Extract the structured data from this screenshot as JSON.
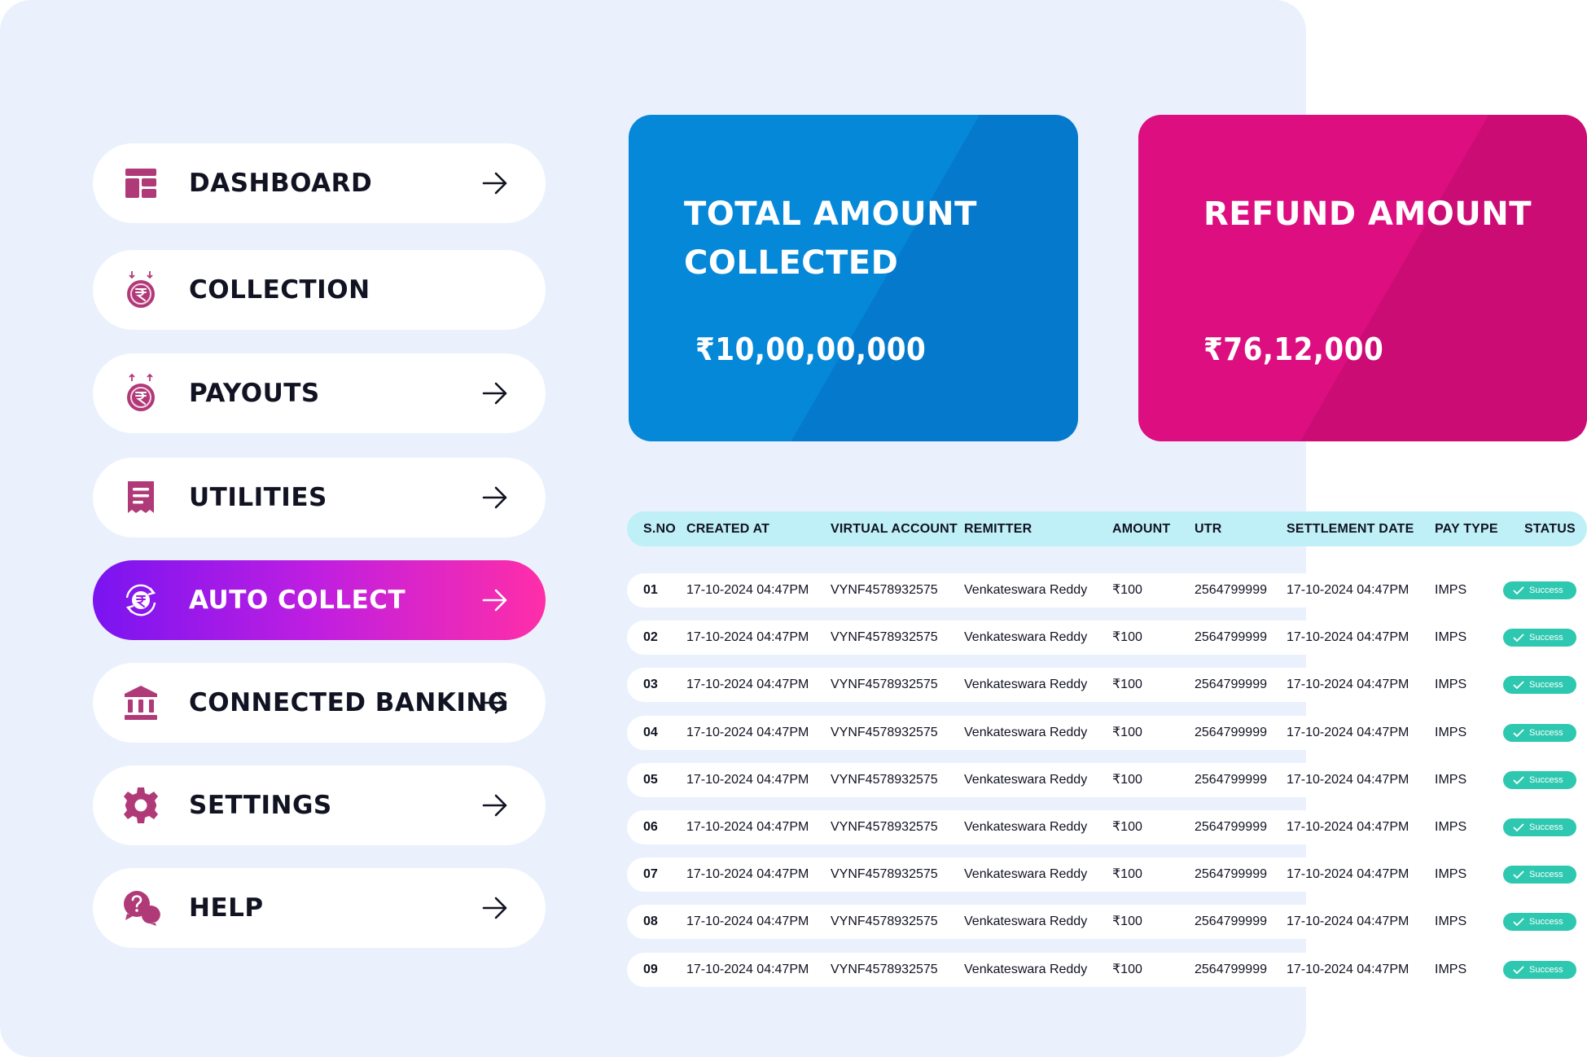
{
  "sidebar": {
    "items": [
      {
        "label": "DASHBOARD",
        "icon": "dashboard-icon",
        "active": false,
        "arrow": true
      },
      {
        "label": "COLLECTION",
        "icon": "rupee-collection-icon",
        "active": false,
        "arrow": false
      },
      {
        "label": "PAYOUTS",
        "icon": "rupee-payout-icon",
        "active": false,
        "arrow": true
      },
      {
        "label": "UTILITIES",
        "icon": "receipt-icon",
        "active": false,
        "arrow": true
      },
      {
        "label": "AUTO COLLECT",
        "icon": "rupee-refresh-icon",
        "active": true,
        "arrow": true
      },
      {
        "label": "CONNECTED BANKING",
        "icon": "bank-icon",
        "active": false,
        "arrow": true
      },
      {
        "label": "SETTINGS",
        "icon": "gear-icon",
        "active": false,
        "arrow": true
      },
      {
        "label": "HELP",
        "icon": "help-chat-icon",
        "active": false,
        "arrow": true
      }
    ]
  },
  "cards": {
    "total": {
      "title": "TOTAL AMOUNT COLLECTED",
      "value": "₹10,00,00,000",
      "color": "#0688d8"
    },
    "refund": {
      "title": "REFUND AMOUNT",
      "value": "₹76,12,000",
      "color": "#dc0e80"
    }
  },
  "table": {
    "headers": {
      "sno": "S.NO",
      "created": "CREATED AT",
      "virtual": "VIRTUAL ACCOUNT",
      "remitter": "REMITTER",
      "amount": "AMOUNT",
      "utr": "UTR",
      "settle": "SETTLEMENT DATE",
      "paytype": "PAY TYPE",
      "status": "STATUS"
    },
    "rows": [
      {
        "sno": "01",
        "created": "17-10-2024 04:47PM",
        "virtual": "VYNF4578932575",
        "remitter": "Venkateswara Reddy",
        "amount": "₹100",
        "utr": "2564799999",
        "settle": "17-10-2024 04:47PM",
        "paytype": "IMPS",
        "status": "Success"
      },
      {
        "sno": "02",
        "created": "17-10-2024 04:47PM",
        "virtual": "VYNF4578932575",
        "remitter": "Venkateswara Reddy",
        "amount": "₹100",
        "utr": "2564799999",
        "settle": "17-10-2024 04:47PM",
        "paytype": "IMPS",
        "status": "Success"
      },
      {
        "sno": "03",
        "created": "17-10-2024 04:47PM",
        "virtual": "VYNF4578932575",
        "remitter": "Venkateswara Reddy",
        "amount": "₹100",
        "utr": "2564799999",
        "settle": "17-10-2024 04:47PM",
        "paytype": "IMPS",
        "status": "Success"
      },
      {
        "sno": "04",
        "created": "17-10-2024 04:47PM",
        "virtual": "VYNF4578932575",
        "remitter": "Venkateswara Reddy",
        "amount": "₹100",
        "utr": "2564799999",
        "settle": "17-10-2024 04:47PM",
        "paytype": "IMPS",
        "status": "Success"
      },
      {
        "sno": "05",
        "created": "17-10-2024 04:47PM",
        "virtual": "VYNF4578932575",
        "remitter": "Venkateswara Reddy",
        "amount": "₹100",
        "utr": "2564799999",
        "settle": "17-10-2024 04:47PM",
        "paytype": "IMPS",
        "status": "Success"
      },
      {
        "sno": "06",
        "created": "17-10-2024 04:47PM",
        "virtual": "VYNF4578932575",
        "remitter": "Venkateswara Reddy",
        "amount": "₹100",
        "utr": "2564799999",
        "settle": "17-10-2024 04:47PM",
        "paytype": "IMPS",
        "status": "Success"
      },
      {
        "sno": "07",
        "created": "17-10-2024 04:47PM",
        "virtual": "VYNF4578932575",
        "remitter": "Venkateswara Reddy",
        "amount": "₹100",
        "utr": "2564799999",
        "settle": "17-10-2024 04:47PM",
        "paytype": "IMPS",
        "status": "Success"
      },
      {
        "sno": "08",
        "created": "17-10-2024 04:47PM",
        "virtual": "VYNF4578932575",
        "remitter": "Venkateswara Reddy",
        "amount": "₹100",
        "utr": "2564799999",
        "settle": "17-10-2024 04:47PM",
        "paytype": "IMPS",
        "status": "Success"
      },
      {
        "sno": "09",
        "created": "17-10-2024 04:47PM",
        "virtual": "VYNF4578932575",
        "remitter": "Venkateswara Reddy",
        "amount": "₹100",
        "utr": "2564799999",
        "settle": "17-10-2024 04:47PM",
        "paytype": "IMPS",
        "status": "Success"
      }
    ]
  },
  "colors": {
    "page_bg": "#eaf1fd",
    "icon": "#b03a78",
    "active_gradient_start": "#7a14f1",
    "active_gradient_end": "#ff2ea8",
    "table_header_bg": "#bff0f7",
    "success_badge": "#2ec8b0"
  }
}
